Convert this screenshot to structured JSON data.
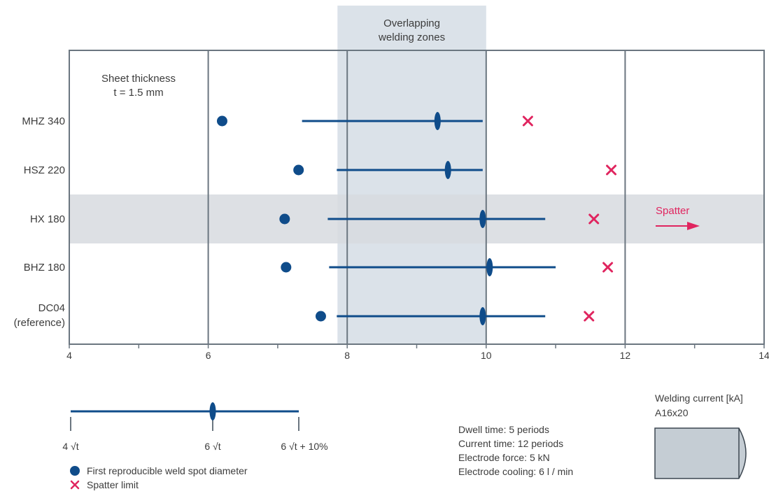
{
  "chart_data": {
    "type": "scatter",
    "title": "",
    "xlabel": "Welding current [kA]",
    "ylabel": "",
    "xlim": [
      4,
      14
    ],
    "x_ticks": [
      "4",
      "6",
      "8",
      "10",
      "12",
      "14"
    ],
    "grid": true,
    "annotation_top": "Overlapping\nwelding zones",
    "overlap_zone": [
      7.86,
      10
    ],
    "sheet_note": "Sheet thickness\nt = 1.5 mm",
    "highlight_category": "HX 180",
    "spatter_arrow_label": "Spatter",
    "categories": [
      {
        "label": "MHZ 340",
        "first_spot": 6.2,
        "range_start": 7.35,
        "range_mid": 9.3,
        "range_end": 9.95,
        "spatter_limit": 10.6
      },
      {
        "label": "HSZ 220",
        "first_spot": 7.3,
        "range_start": 7.85,
        "range_mid": 9.45,
        "range_end": 9.95,
        "spatter_limit": 11.8
      },
      {
        "label": "HX 180",
        "first_spot": 7.1,
        "range_start": 7.72,
        "range_mid": 9.95,
        "range_end": 10.85,
        "spatter_limit": 11.55
      },
      {
        "label": "BHZ 180",
        "first_spot": 7.12,
        "range_start": 7.74,
        "range_mid": 10.05,
        "range_end": 11.0,
        "spatter_limit": 11.75
      },
      {
        "label": "DC04\n(reference)",
        "first_spot": 7.62,
        "range_start": 7.85,
        "range_mid": 9.95,
        "range_end": 10.85,
        "spatter_limit": 11.48
      }
    ],
    "colors": {
      "series": "#0f4c8a",
      "spatter": "#e0255f",
      "zone": "#dbe2e9",
      "band": "#d7dbdf",
      "grid": "#6b7680",
      "electrode": "#c5cdd4"
    }
  },
  "legend": {
    "scale_labels": [
      "4 √t",
      "6 √t",
      "6 √t + 10%"
    ],
    "first_spot": "First reproducible weld spot diameter",
    "spatter": "Spatter limit"
  },
  "conditions": [
    "Dwell time: 5 periods",
    "Current time: 12 periods",
    "Electrode force: 5 kN",
    "Electrode cooling: 6 l / min"
  ],
  "electrode": {
    "label": "Welding current [kA]",
    "model": "A16x20"
  }
}
